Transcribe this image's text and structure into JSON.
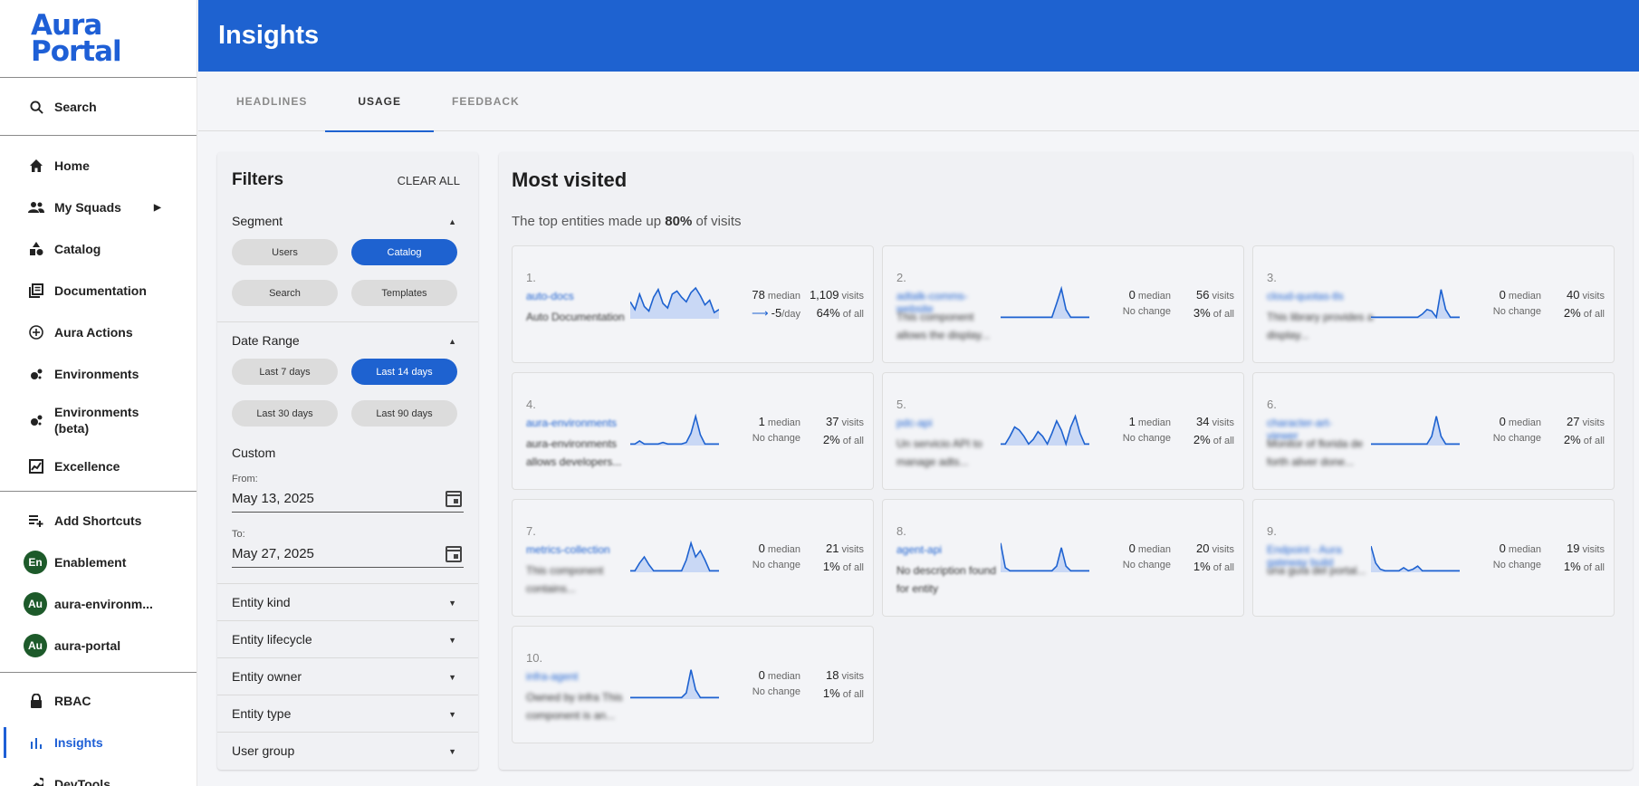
{
  "logo": {
    "line1": "Aura",
    "line2": "Portal"
  },
  "sidebar": {
    "search": "Search",
    "main": [
      {
        "label": "Home",
        "icon": "home-icon"
      },
      {
        "label": "My Squads",
        "icon": "group-icon"
      },
      {
        "label": "Catalog",
        "icon": "catalog-icon"
      },
      {
        "label": "Documentation",
        "icon": "documentation-icon"
      },
      {
        "label": "Aura Actions",
        "icon": "add-circle-icon"
      },
      {
        "label": "Environments",
        "icon": "environments-icon"
      },
      {
        "label": "Environments (beta)",
        "icon": "environments-icon"
      },
      {
        "label": "Excellence",
        "icon": "excellence-icon"
      }
    ],
    "shortcuts": [
      {
        "label": "Add Shortcuts"
      },
      {
        "label": "Enablement",
        "avatar": "En"
      },
      {
        "label": "aura-environm...",
        "avatar": "Au"
      },
      {
        "label": "aura-portal",
        "avatar": "Au"
      }
    ],
    "bottom": [
      {
        "label": "RBAC"
      },
      {
        "label": "Insights"
      },
      {
        "label": "DevTools"
      }
    ]
  },
  "header": {
    "title": "Insights"
  },
  "tabs": [
    "HEADLINES",
    "USAGE",
    "FEEDBACK"
  ],
  "filters": {
    "title": "Filters",
    "clear_all": "CLEAR ALL",
    "segment": {
      "title": "Segment",
      "options": [
        "Users",
        "Catalog",
        "Search",
        "Templates"
      ],
      "selected": "Catalog"
    },
    "date_range": {
      "title": "Date Range",
      "options": [
        "Last 7 days",
        "Last 14 days",
        "Last 30 days",
        "Last 90 days"
      ],
      "selected": "Last 14 days"
    },
    "custom": {
      "title": "Custom",
      "from_label": "From:",
      "from_value": "May 13, 2025",
      "to_label": "To:",
      "to_value": "May 27, 2025"
    },
    "accordions": [
      "Entity kind",
      "Entity lifecycle",
      "Entity owner",
      "Entity type",
      "User group"
    ]
  },
  "most_visited": {
    "title": "Most visited",
    "subtitle_prefix": "The top entities made up ",
    "subtitle_pct": "80%",
    "subtitle_suffix": " of visits",
    "median_label": "median",
    "visits_label": "visits",
    "of_all_label": "of all",
    "cards": [
      {
        "rank": "1.",
        "name": "auto-docs",
        "desc": "Auto Documentation",
        "median": "78",
        "visits": "1,109",
        "change": "-5",
        "change_unit": "/day",
        "share": "64%",
        "spark": [
          0.55,
          0.3,
          0.8,
          0.4,
          0.25,
          0.7,
          0.95,
          0.5,
          0.35,
          0.8,
          0.9,
          0.7,
          0.55,
          0.85,
          1.0,
          0.75,
          0.45,
          0.6,
          0.2,
          0.3
        ]
      },
      {
        "rank": "2.",
        "name": "adtalk-comms-website",
        "desc": "This component allows the display...",
        "median": "0",
        "visits": "56",
        "change": "No change",
        "share": "3%",
        "spark": [
          0.05,
          0.05,
          0.05,
          0.05,
          0.05,
          0.05,
          0.05,
          0.05,
          0.05,
          0.05,
          0.05,
          0.05,
          0.5,
          0.98,
          0.3,
          0.05,
          0.05,
          0.05,
          0.05,
          0.05
        ]
      },
      {
        "rank": "3.",
        "name": "cloud-quotas-tls",
        "desc": "This library provides a display...",
        "median": "0",
        "visits": "40",
        "change": "No change",
        "share": "2%",
        "spark": [
          0.05,
          0.05,
          0.05,
          0.05,
          0.05,
          0.05,
          0.05,
          0.05,
          0.05,
          0.05,
          0.05,
          0.15,
          0.3,
          0.25,
          0.05,
          0.95,
          0.3,
          0.05,
          0.05,
          0.05
        ]
      },
      {
        "rank": "4.",
        "name": "aura-environments",
        "desc": "aura-environments allows developers...",
        "median": "1",
        "visits": "37",
        "change": "No change",
        "share": "2%",
        "spark": [
          0.05,
          0.05,
          0.15,
          0.05,
          0.05,
          0.05,
          0.05,
          0.1,
          0.05,
          0.05,
          0.05,
          0.05,
          0.1,
          0.4,
          0.95,
          0.35,
          0.05,
          0.05,
          0.05,
          0.05
        ]
      },
      {
        "rank": "5.",
        "name": "pdc-api",
        "desc": "Un servicio API to manage adts...",
        "median": "1",
        "visits": "34",
        "change": "No change",
        "share": "2%",
        "spark": [
          0.05,
          0.05,
          0.3,
          0.6,
          0.5,
          0.3,
          0.05,
          0.2,
          0.45,
          0.3,
          0.05,
          0.4,
          0.8,
          0.5,
          0.05,
          0.6,
          0.95,
          0.4,
          0.05,
          0.05
        ]
      },
      {
        "rank": "6.",
        "name": "character-art-viewer",
        "desc": "Monitor of florida de forth aliver done...",
        "median": "0",
        "visits": "27",
        "change": "No change",
        "share": "2%",
        "spark": [
          0.05,
          0.05,
          0.05,
          0.05,
          0.05,
          0.05,
          0.05,
          0.05,
          0.05,
          0.05,
          0.05,
          0.05,
          0.05,
          0.3,
          0.95,
          0.3,
          0.05,
          0.05,
          0.05,
          0.05
        ]
      },
      {
        "rank": "7.",
        "name": "metrics-collection",
        "desc": "This component contains...",
        "median": "0",
        "visits": "21",
        "change": "No change",
        "share": "1%",
        "spark": [
          0.05,
          0.05,
          0.3,
          0.5,
          0.25,
          0.05,
          0.05,
          0.05,
          0.05,
          0.05,
          0.05,
          0.05,
          0.4,
          0.95,
          0.5,
          0.7,
          0.4,
          0.05,
          0.05,
          0.05
        ]
      },
      {
        "rank": "8.",
        "name": "agent-api",
        "desc": "No description found for entity",
        "median": "0",
        "visits": "20",
        "change": "No change",
        "share": "1%",
        "spark": [
          0.95,
          0.15,
          0.05,
          0.05,
          0.05,
          0.05,
          0.05,
          0.05,
          0.05,
          0.05,
          0.05,
          0.05,
          0.2,
          0.8,
          0.2,
          0.05,
          0.05,
          0.05,
          0.05,
          0.05
        ]
      },
      {
        "rank": "9.",
        "name": "Endpoint - Aura gateway build",
        "desc": "una guía del portal...",
        "median": "0",
        "visits": "19",
        "change": "No change",
        "share": "1%",
        "spark": [
          0.85,
          0.3,
          0.1,
          0.05,
          0.05,
          0.05,
          0.05,
          0.15,
          0.05,
          0.1,
          0.2,
          0.05,
          0.05,
          0.05,
          0.05,
          0.05,
          0.05,
          0.05,
          0.05,
          0.05
        ]
      },
      {
        "rank": "10.",
        "name": "infra-agent",
        "desc": "Owned by infra This component is an...",
        "median": "0",
        "visits": "18",
        "change": "No change",
        "share": "1%",
        "spark": [
          0.05,
          0.05,
          0.05,
          0.05,
          0.05,
          0.05,
          0.05,
          0.05,
          0.05,
          0.05,
          0.05,
          0.05,
          0.2,
          0.95,
          0.3,
          0.05,
          0.05,
          0.05,
          0.05,
          0.05
        ]
      }
    ]
  },
  "colors": {
    "primary": "#1e62d0",
    "avatar": "#1d5a2a",
    "spark_fill": "#c9d8f5"
  }
}
